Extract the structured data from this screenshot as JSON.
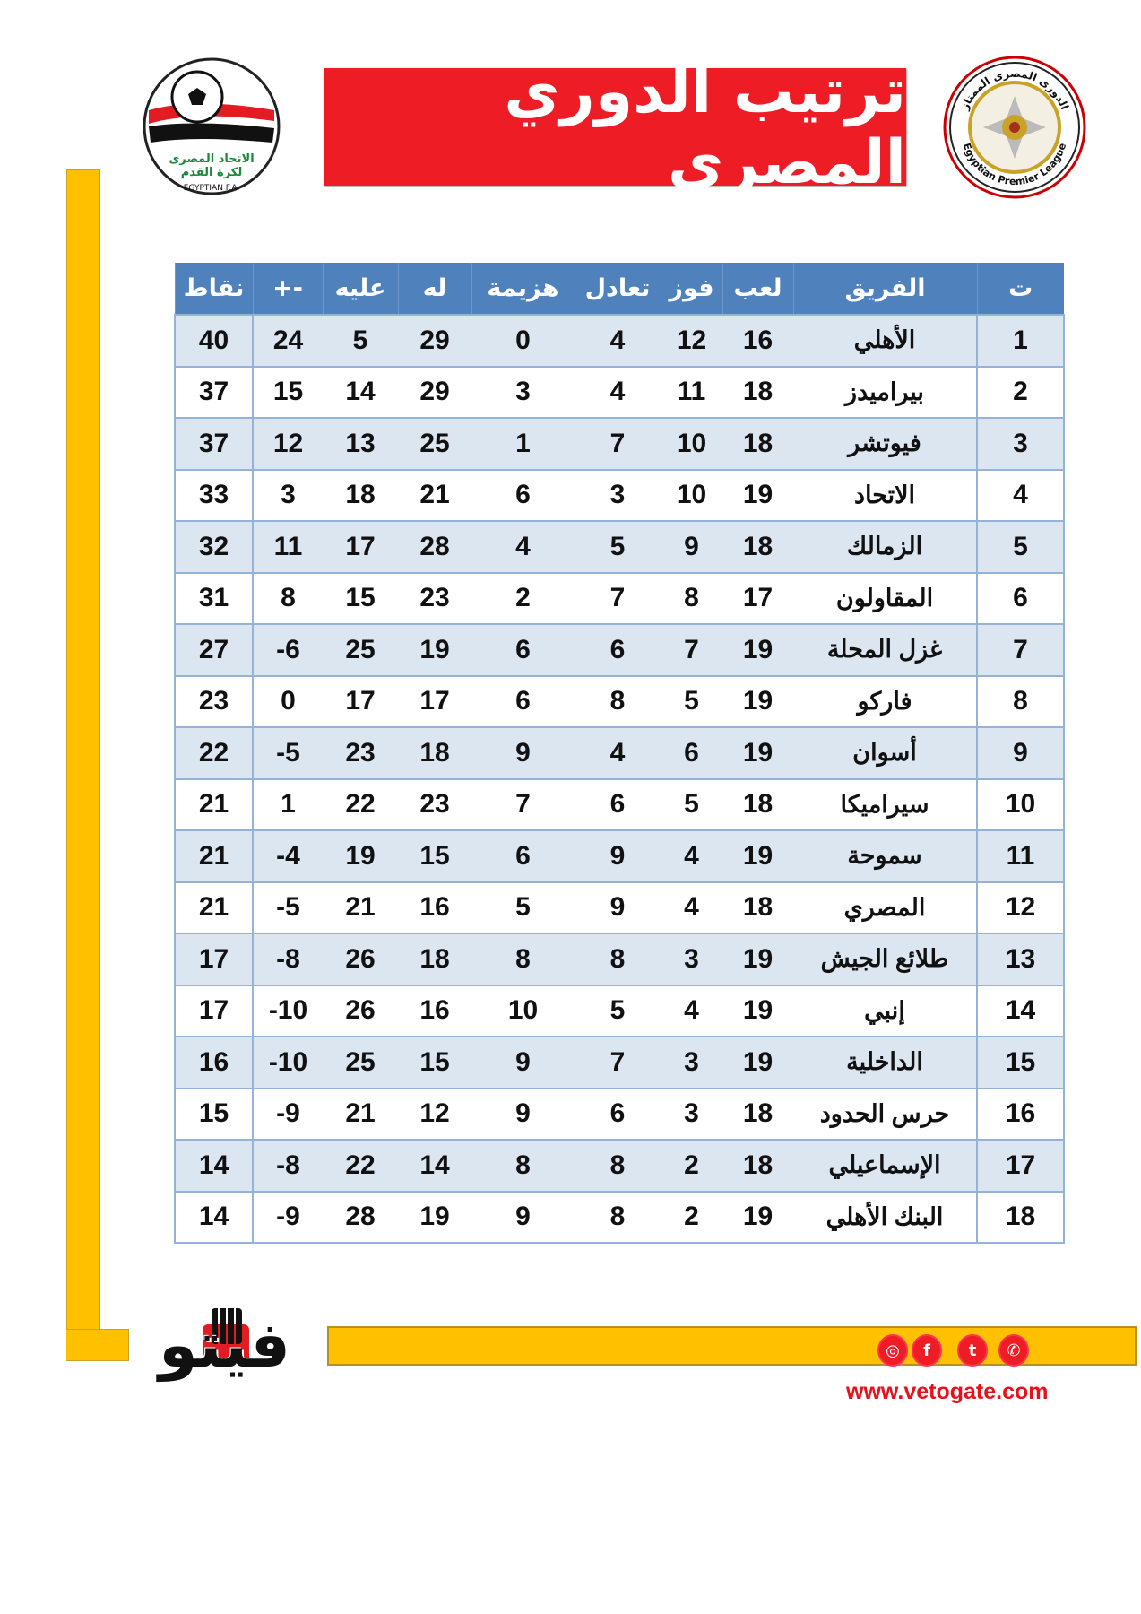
{
  "header": {
    "title": "ترتيب الدوري المصري",
    "left_logo_text": [
      "الاتحاد المصرى لكرة القدم",
      "EGYPTIAN F.A."
    ],
    "right_logo_text": [
      "الدورى المصرى الممتاز",
      "Egyptian Premier League"
    ]
  },
  "colors": {
    "banner": "#ee1c24",
    "table_header": "#4f81bd",
    "row_alt": "#dce6f1",
    "accent_bar": "#ffc000",
    "brand_red": "#e8101a"
  },
  "table": {
    "columns": [
      "ت",
      "الفريق",
      "لعب",
      "فوز",
      "تعادل",
      "هزيمة",
      "له",
      "عليه",
      "+-",
      "نقاط"
    ],
    "rows": [
      [
        "1",
        "الأهلي",
        "16",
        "12",
        "4",
        "0",
        "29",
        "5",
        "24",
        "40"
      ],
      [
        "2",
        "بيراميدز",
        "18",
        "11",
        "4",
        "3",
        "29",
        "14",
        "15",
        "37"
      ],
      [
        "3",
        "فيوتشر",
        "18",
        "10",
        "7",
        "1",
        "25",
        "13",
        "12",
        "37"
      ],
      [
        "4",
        "الاتحاد",
        "19",
        "10",
        "3",
        "6",
        "21",
        "18",
        "3",
        "33"
      ],
      [
        "5",
        "الزمالك",
        "18",
        "9",
        "5",
        "4",
        "28",
        "17",
        "11",
        "32"
      ],
      [
        "6",
        "المقاولون",
        "17",
        "8",
        "7",
        "2",
        "23",
        "15",
        "8",
        "31"
      ],
      [
        "7",
        "غزل المحلة",
        "19",
        "7",
        "6",
        "6",
        "19",
        "25",
        "-6",
        "27"
      ],
      [
        "8",
        "فاركو",
        "19",
        "5",
        "8",
        "6",
        "17",
        "17",
        "0",
        "23"
      ],
      [
        "9",
        "أسوان",
        "19",
        "6",
        "4",
        "9",
        "18",
        "23",
        "-5",
        "22"
      ],
      [
        "10",
        "سيراميكا",
        "18",
        "5",
        "6",
        "7",
        "23",
        "22",
        "1",
        "21"
      ],
      [
        "11",
        "سموحة",
        "19",
        "4",
        "9",
        "6",
        "15",
        "19",
        "-4",
        "21"
      ],
      [
        "12",
        "المصري",
        "18",
        "4",
        "9",
        "5",
        "16",
        "21",
        "-5",
        "21"
      ],
      [
        "13",
        "طلائع الجيش",
        "19",
        "3",
        "8",
        "8",
        "18",
        "26",
        "-8",
        "17"
      ],
      [
        "14",
        "إنبي",
        "19",
        "4",
        "5",
        "10",
        "16",
        "26",
        "-10",
        "17"
      ],
      [
        "15",
        "الداخلية",
        "19",
        "3",
        "7",
        "9",
        "15",
        "25",
        "-10",
        "16"
      ],
      [
        "16",
        "حرس الحدود",
        "18",
        "3",
        "6",
        "9",
        "12",
        "21",
        "-9",
        "15"
      ],
      [
        "17",
        "الإسماعيلي",
        "18",
        "2",
        "8",
        "8",
        "14",
        "22",
        "-8",
        "14"
      ],
      [
        "18",
        "البنك الأهلي",
        "19",
        "2",
        "8",
        "9",
        "19",
        "28",
        "-9",
        "14"
      ]
    ]
  },
  "footer": {
    "brand_logo_text": "فيتو",
    "social_icons": [
      "instagram-icon",
      "facebook-icon",
      "twitter-icon",
      "whatsapp-icon"
    ],
    "url": "www.vetogate.com"
  }
}
